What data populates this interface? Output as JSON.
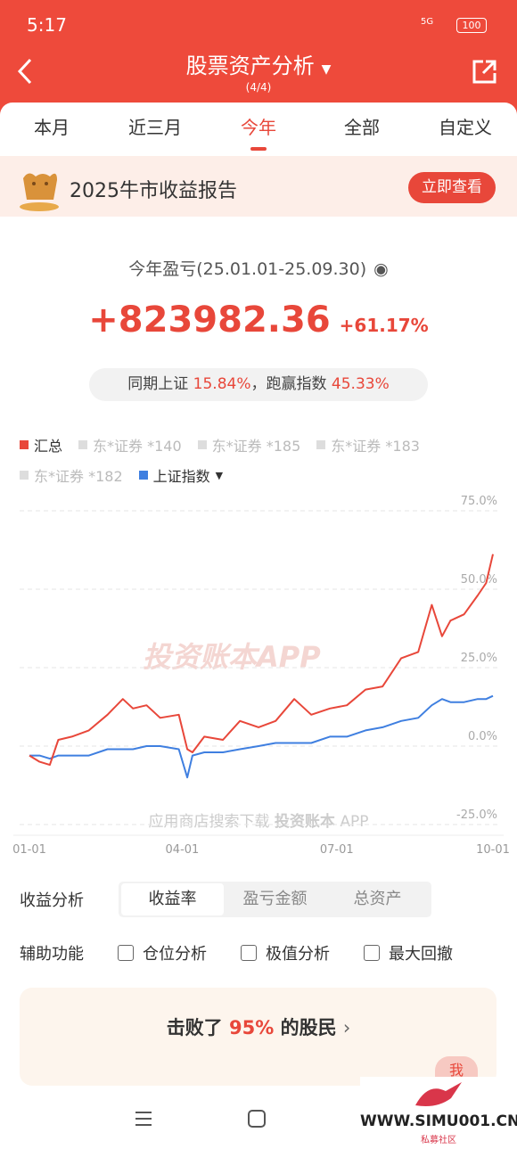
{
  "status_bar": {
    "time": "5:17",
    "network": "5G",
    "battery": "100"
  },
  "header": {
    "title": "股票资产分析",
    "page": "(4/4)"
  },
  "tabs": [
    "本月",
    "近三月",
    "今年",
    "全部",
    "自定义"
  ],
  "active_tab": 2,
  "banner": {
    "title": "2025牛市收益报告",
    "button": "立即查看"
  },
  "summary": {
    "label": "今年盈亏(25.01.01-25.09.30)",
    "amount": "+823982.36",
    "rate": "+61.17%",
    "compare_label": "同期上证",
    "index_rate": "15.84%",
    "beat_label": "，跑赢指数",
    "beat_rate": "45.33%"
  },
  "chart_data": {
    "type": "line",
    "x": [
      0,
      6,
      12,
      17,
      25,
      35,
      46,
      55,
      61,
      69,
      77,
      88,
      93,
      96,
      103,
      114,
      124,
      135,
      145,
      156,
      166,
      177,
      187,
      198,
      208,
      219,
      229,
      237,
      243,
      248,
      256,
      264,
      269,
      273
    ],
    "xlim": [
      0,
      273
    ],
    "xticks": [
      {
        "value": 0,
        "label": "01-01"
      },
      {
        "value": 90,
        "label": "04-01"
      },
      {
        "value": 181,
        "label": "07-01"
      },
      {
        "value": 273,
        "label": "10-01"
      }
    ],
    "ylim": [
      -25,
      75
    ],
    "yticks": [
      {
        "value": -25,
        "label": "-25.0%"
      },
      {
        "value": 0,
        "label": "0.0%"
      },
      {
        "value": 25,
        "label": "25.0%"
      },
      {
        "value": 50,
        "label": "50.0%"
      },
      {
        "value": 75,
        "label": "75.0%"
      }
    ],
    "grid": true,
    "series": [
      {
        "name": "汇总",
        "color": "#e8473a",
        "values": [
          -3,
          -5,
          -6,
          2,
          3,
          5,
          10,
          15,
          12,
          13,
          9,
          10,
          -1,
          -2,
          3,
          2,
          8,
          6,
          8,
          15,
          10,
          12,
          13,
          18,
          19,
          28,
          30,
          45,
          35,
          40,
          42,
          48,
          52,
          61.17
        ]
      },
      {
        "name": "上证指数",
        "color": "#3f7fe0",
        "values": [
          -3,
          -3,
          -4,
          -3,
          -3,
          -3,
          -1,
          -1,
          -1,
          0,
          0,
          -1,
          -10,
          -3,
          -2,
          -2,
          -1,
          0,
          1,
          1,
          1,
          3,
          3,
          5,
          6,
          8,
          9,
          13,
          15,
          14,
          14,
          15,
          15,
          16
        ]
      }
    ],
    "inactive_series": [
      "东*证券 *140",
      "东*证券 *185",
      "东*证券 *183",
      "东*证券 *182"
    ]
  },
  "watermark": {
    "brand": "投资账本APP",
    "hint": "应用商店搜索下载",
    "hint_brand": "投资账本",
    "hint_app": "APP"
  },
  "analysis": {
    "label": "收益分析",
    "options": [
      "收益率",
      "盈亏金额",
      "总资产"
    ],
    "active": 0
  },
  "tools": {
    "label": "辅助功能",
    "options": [
      "仓位分析",
      "极值分析",
      "最大回撤"
    ]
  },
  "rank": {
    "prefix": "击败了",
    "percent": "95%",
    "suffix": "的股民"
  },
  "avatar": "我",
  "site_watermark": {
    "url": "WWW.SIMU001.CN",
    "name": "私募社区"
  }
}
